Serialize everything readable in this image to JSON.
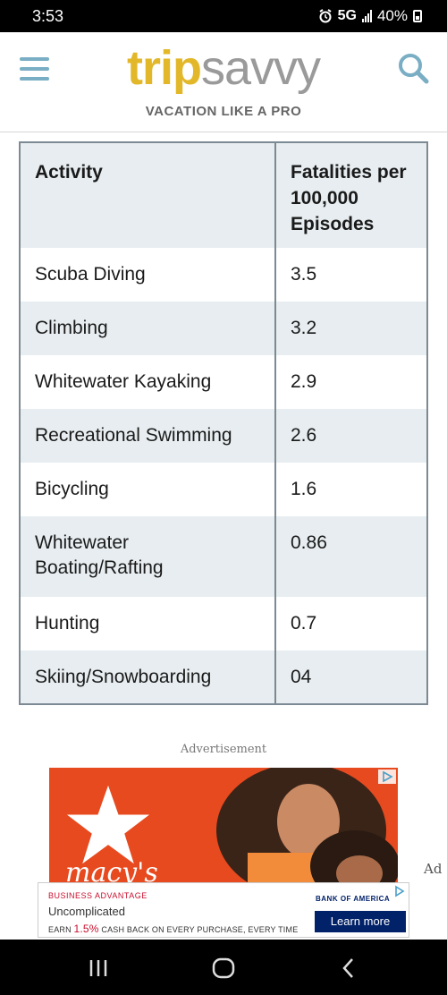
{
  "status_bar": {
    "time": "3:53",
    "network": "5G",
    "battery": "40%"
  },
  "header": {
    "logo_trip": "trip",
    "logo_savvy": "savvy",
    "tagline": "VACATION LIKE A PRO",
    "brand_colors": {
      "trip": "#e2b82a",
      "savvy": "#9a9a9a",
      "icons": "#7aaec4"
    }
  },
  "table": {
    "headers": [
      "Activity",
      "Fatalities per 100,000 Episodes"
    ],
    "rows": [
      {
        "activity": "Scuba Diving",
        "value": "3.5"
      },
      {
        "activity": "Climbing",
        "value": "3.2"
      },
      {
        "activity": "Whitewater Kayaking",
        "value": "2.9"
      },
      {
        "activity": "Recreational Swimming",
        "value": "2.6"
      },
      {
        "activity": "Bicycling",
        "value": "1.6"
      },
      {
        "activity": "Whitewater Boating/Rafting",
        "value": "0.86"
      },
      {
        "activity": "Hunting",
        "value": "0.7"
      },
      {
        "activity": "Skiing/Snowboarding",
        "value": "04"
      }
    ]
  },
  "ad": {
    "label": "Advertisement",
    "banner_brand": "macy's",
    "side_label": "Ad",
    "boa": {
      "eyebrow": "BUSINESS ADVANTAGE",
      "headline": "Uncomplicated",
      "offer_prefix": "EARN ",
      "offer_pct": "1.5%",
      "offer_suffix": " CASH BACK ON EVERY PURCHASE, EVERY TIME",
      "brand": "BANK OF AMERICA",
      "cta": "Learn more"
    }
  },
  "nav": {
    "icons": [
      "recent-apps-icon",
      "home-icon",
      "back-icon"
    ]
  }
}
